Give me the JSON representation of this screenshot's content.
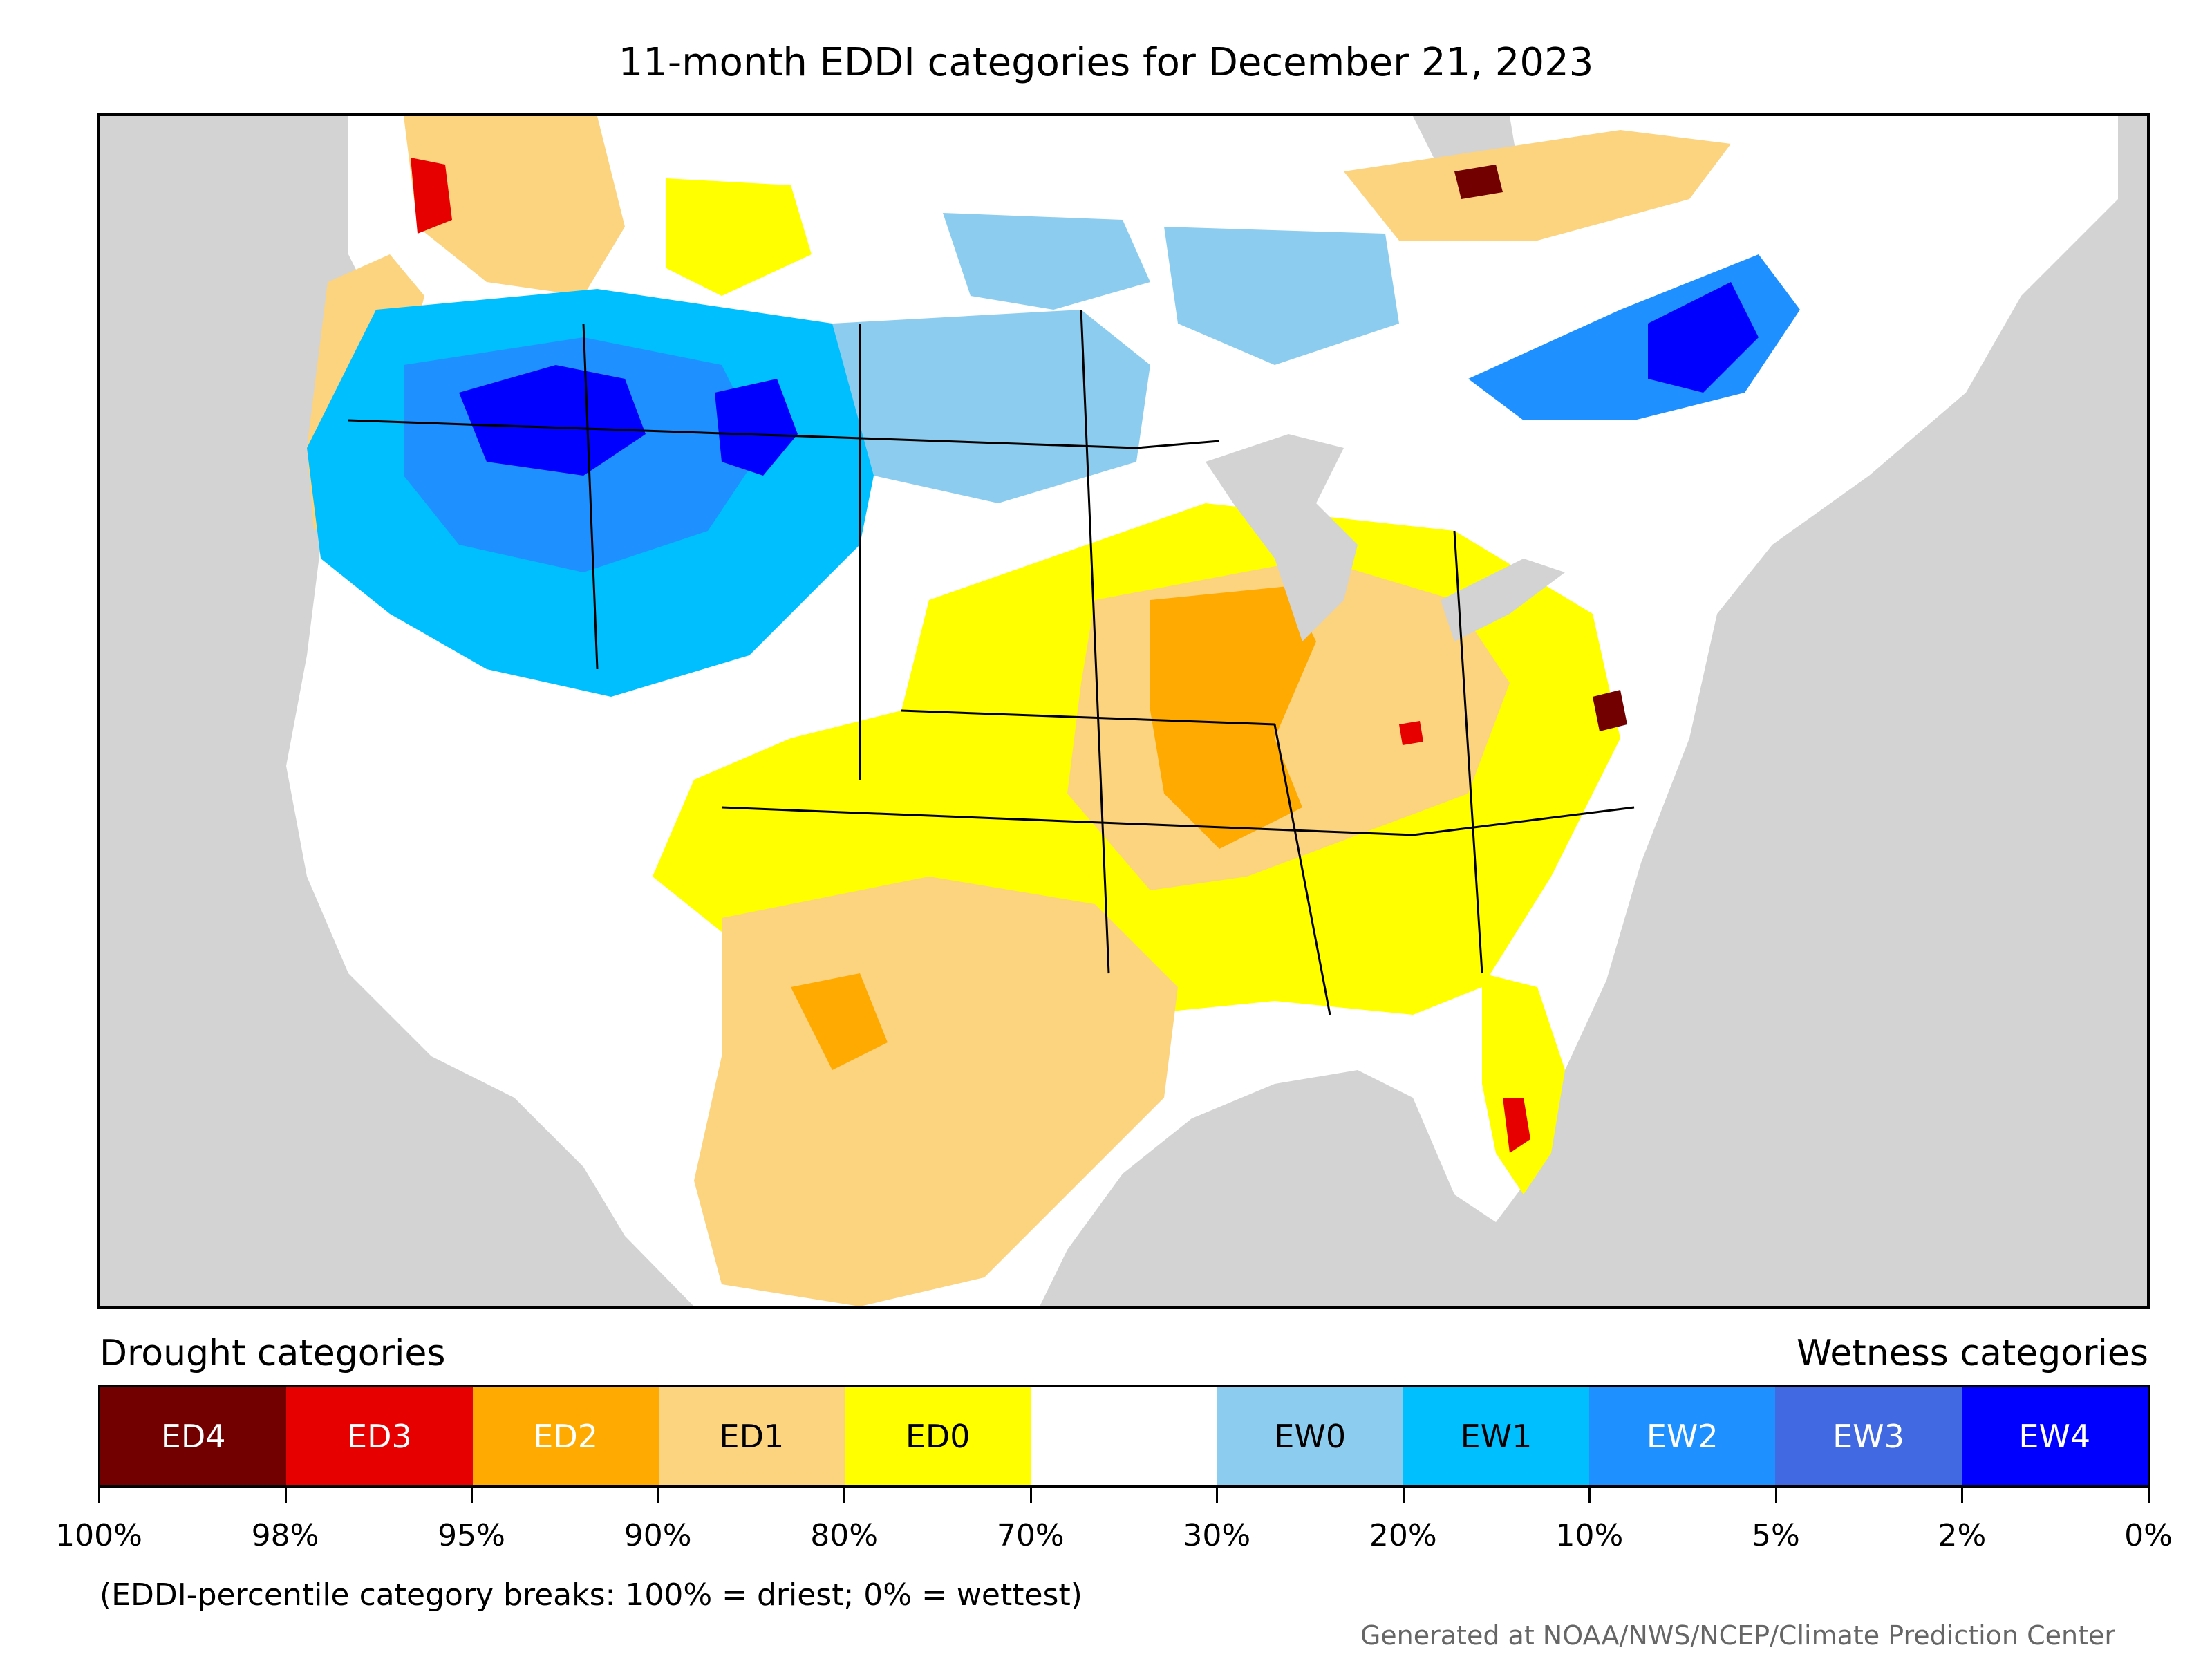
{
  "title": "11-month EDDI categories for December 21, 2023",
  "legend": {
    "drought_title": "Drought categories",
    "wetness_title": "Wetness categories",
    "categories": [
      {
        "label": "ED4",
        "color": "#730000",
        "text_color": "#ffffff"
      },
      {
        "label": "ED3",
        "color": "#e60000",
        "text_color": "#ffffff"
      },
      {
        "label": "ED2",
        "color": "#ffaa00",
        "text_color": "#ffffff"
      },
      {
        "label": "ED1",
        "color": "#fcd37f",
        "text_color": "#000000"
      },
      {
        "label": "ED0",
        "color": "#ffff00",
        "text_color": "#000000"
      },
      {
        "label": "",
        "color": "#ffffff",
        "text_color": "#000000"
      },
      {
        "label": "EW0",
        "color": "#8ccdef",
        "text_color": "#000000"
      },
      {
        "label": "EW1",
        "color": "#00bfff",
        "text_color": "#000000"
      },
      {
        "label": "EW2",
        "color": "#1e90ff",
        "text_color": "#ffffff"
      },
      {
        "label": "EW3",
        "color": "#4169e1",
        "text_color": "#ffffff"
      },
      {
        "label": "EW4",
        "color": "#0000ff",
        "text_color": "#ffffff"
      }
    ],
    "ticks": [
      "100%",
      "98%",
      "95%",
      "90%",
      "80%",
      "70%",
      "30%",
      "20%",
      "10%",
      "5%",
      "2%",
      "0%"
    ]
  },
  "note": "(EDDI-percentile category breaks: 100% = driest; 0% = wettest)",
  "credit": "Generated at NOAA/NWS/NCEP/Climate Prediction Center",
  "map": {
    "ocean_color": "#d3d3d3",
    "regions": [
      {
        "name": "Pacific Northwest coast",
        "category": "ED1"
      },
      {
        "name": "Great Basin and Northern Rockies",
        "category": "EW4"
      },
      {
        "name": "Central Rockies",
        "category": "EW2"
      },
      {
        "name": "Northern Plains",
        "category": "EW0"
      },
      {
        "name": "Southern Plains and Texas",
        "category": "ED1"
      },
      {
        "name": "Mississippi and Ohio Valleys",
        "category": "ED2"
      },
      {
        "name": "Southeast",
        "category": "ED0"
      },
      {
        "name": "Virginia",
        "category": "ED4"
      },
      {
        "name": "Florida",
        "category": "ED3"
      },
      {
        "name": "Quebec and Northern New England",
        "category": "EW4"
      },
      {
        "name": "Northern Ontario",
        "category": "ED1"
      }
    ]
  }
}
